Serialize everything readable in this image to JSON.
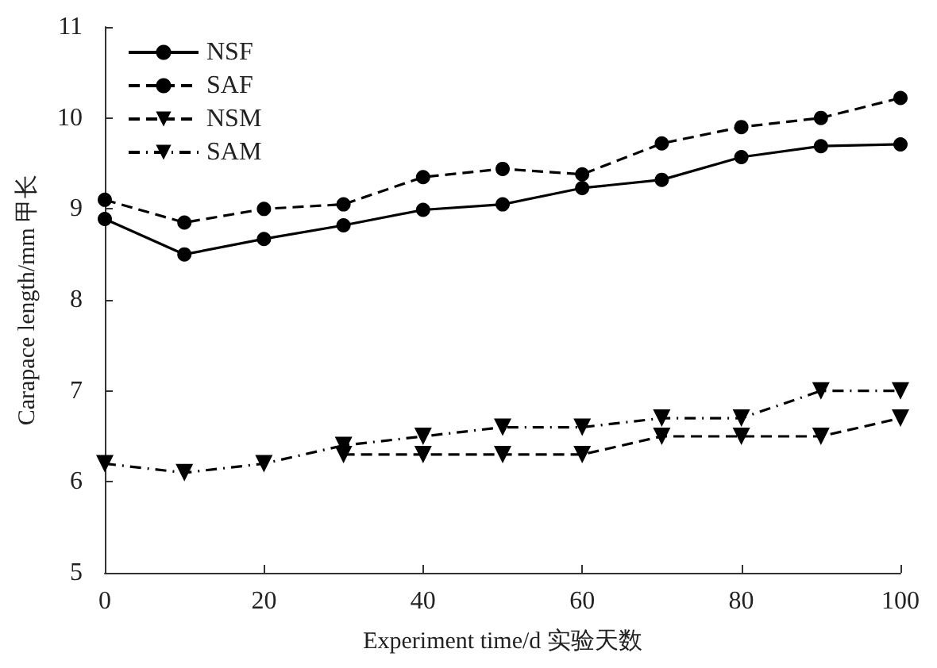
{
  "chart_data": {
    "type": "line",
    "xlabel": "Experiment time/d 实验天数",
    "ylabel": "Carapace length/mm 甲长",
    "xlim": [
      0,
      100
    ],
    "xticks": [
      0,
      20,
      40,
      60,
      80,
      100
    ],
    "ylim": [
      5,
      11
    ],
    "yticks": [
      5,
      6,
      7,
      8,
      9,
      10,
      11
    ],
    "grid": false,
    "legend": "top left",
    "x": [
      0,
      10,
      20,
      30,
      40,
      50,
      60,
      70,
      80,
      90,
      100
    ],
    "series": [
      {
        "name": "NSF",
        "color": "#000000",
        "marker": "circle",
        "line_style": "solid",
        "values": [
          8.89,
          8.5,
          8.67,
          8.82,
          8.99,
          9.05,
          9.23,
          9.32,
          9.57,
          9.69,
          9.71
        ]
      },
      {
        "name": "SAF",
        "color": "#000000",
        "marker": "circle",
        "line_style": "dashed",
        "values": [
          9.1,
          8.85,
          9.0,
          9.05,
          9.35,
          9.44,
          9.38,
          9.72,
          9.9,
          10.0,
          10.22
        ]
      },
      {
        "name": "NSM",
        "color": "#000000",
        "marker": "triangle",
        "line_style": "dashed",
        "values": [
          null,
          null,
          null,
          6.3,
          6.3,
          6.3,
          6.3,
          6.5,
          6.5,
          6.5,
          6.7
        ]
      },
      {
        "name": "SAM",
        "color": "#000000",
        "marker": "triangle",
        "line_style": "dashdot",
        "values": [
          6.2,
          6.1,
          6.2,
          6.4,
          6.5,
          6.6,
          6.6,
          6.7,
          6.7,
          7.0,
          7.0
        ]
      }
    ]
  }
}
